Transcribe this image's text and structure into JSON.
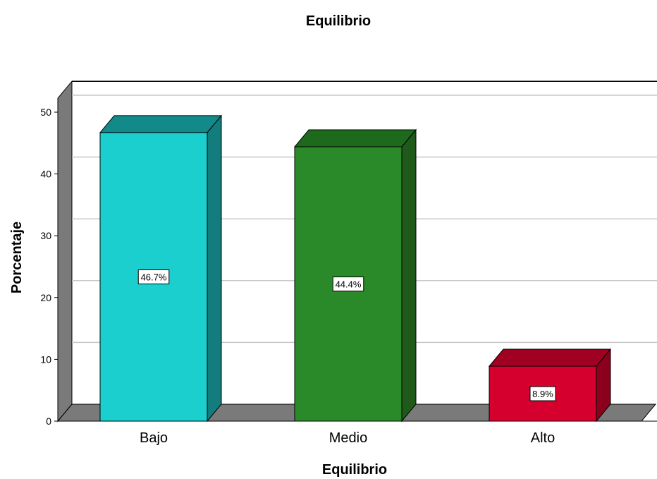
{
  "chart_data": {
    "type": "bar",
    "title": "Equilibrio",
    "xlabel": "Equilibrio",
    "ylabel": "Porcentaje",
    "categories": [
      "Bajo",
      "Medio",
      "Alto"
    ],
    "values": [
      46.7,
      44.4,
      8.9
    ],
    "data_labels": [
      "46.7%",
      "44.4%",
      "8.9%"
    ],
    "yticks": [
      "0",
      "10",
      "20",
      "30",
      "40",
      "50"
    ],
    "ylim": [
      0,
      55
    ],
    "grid": true,
    "style": "3d",
    "colors": {
      "bars": [
        "#1ccfcf",
        "#2a8a2a",
        "#d6002e"
      ],
      "bar_sides": [
        "#137d7d",
        "#1f5a1a",
        "#8a001d"
      ],
      "bar_tops": [
        "#138a8a",
        "#1e6a1c",
        "#a00022"
      ],
      "wall": "#7a7a7a",
      "gridline": "#c8c8c8"
    }
  }
}
